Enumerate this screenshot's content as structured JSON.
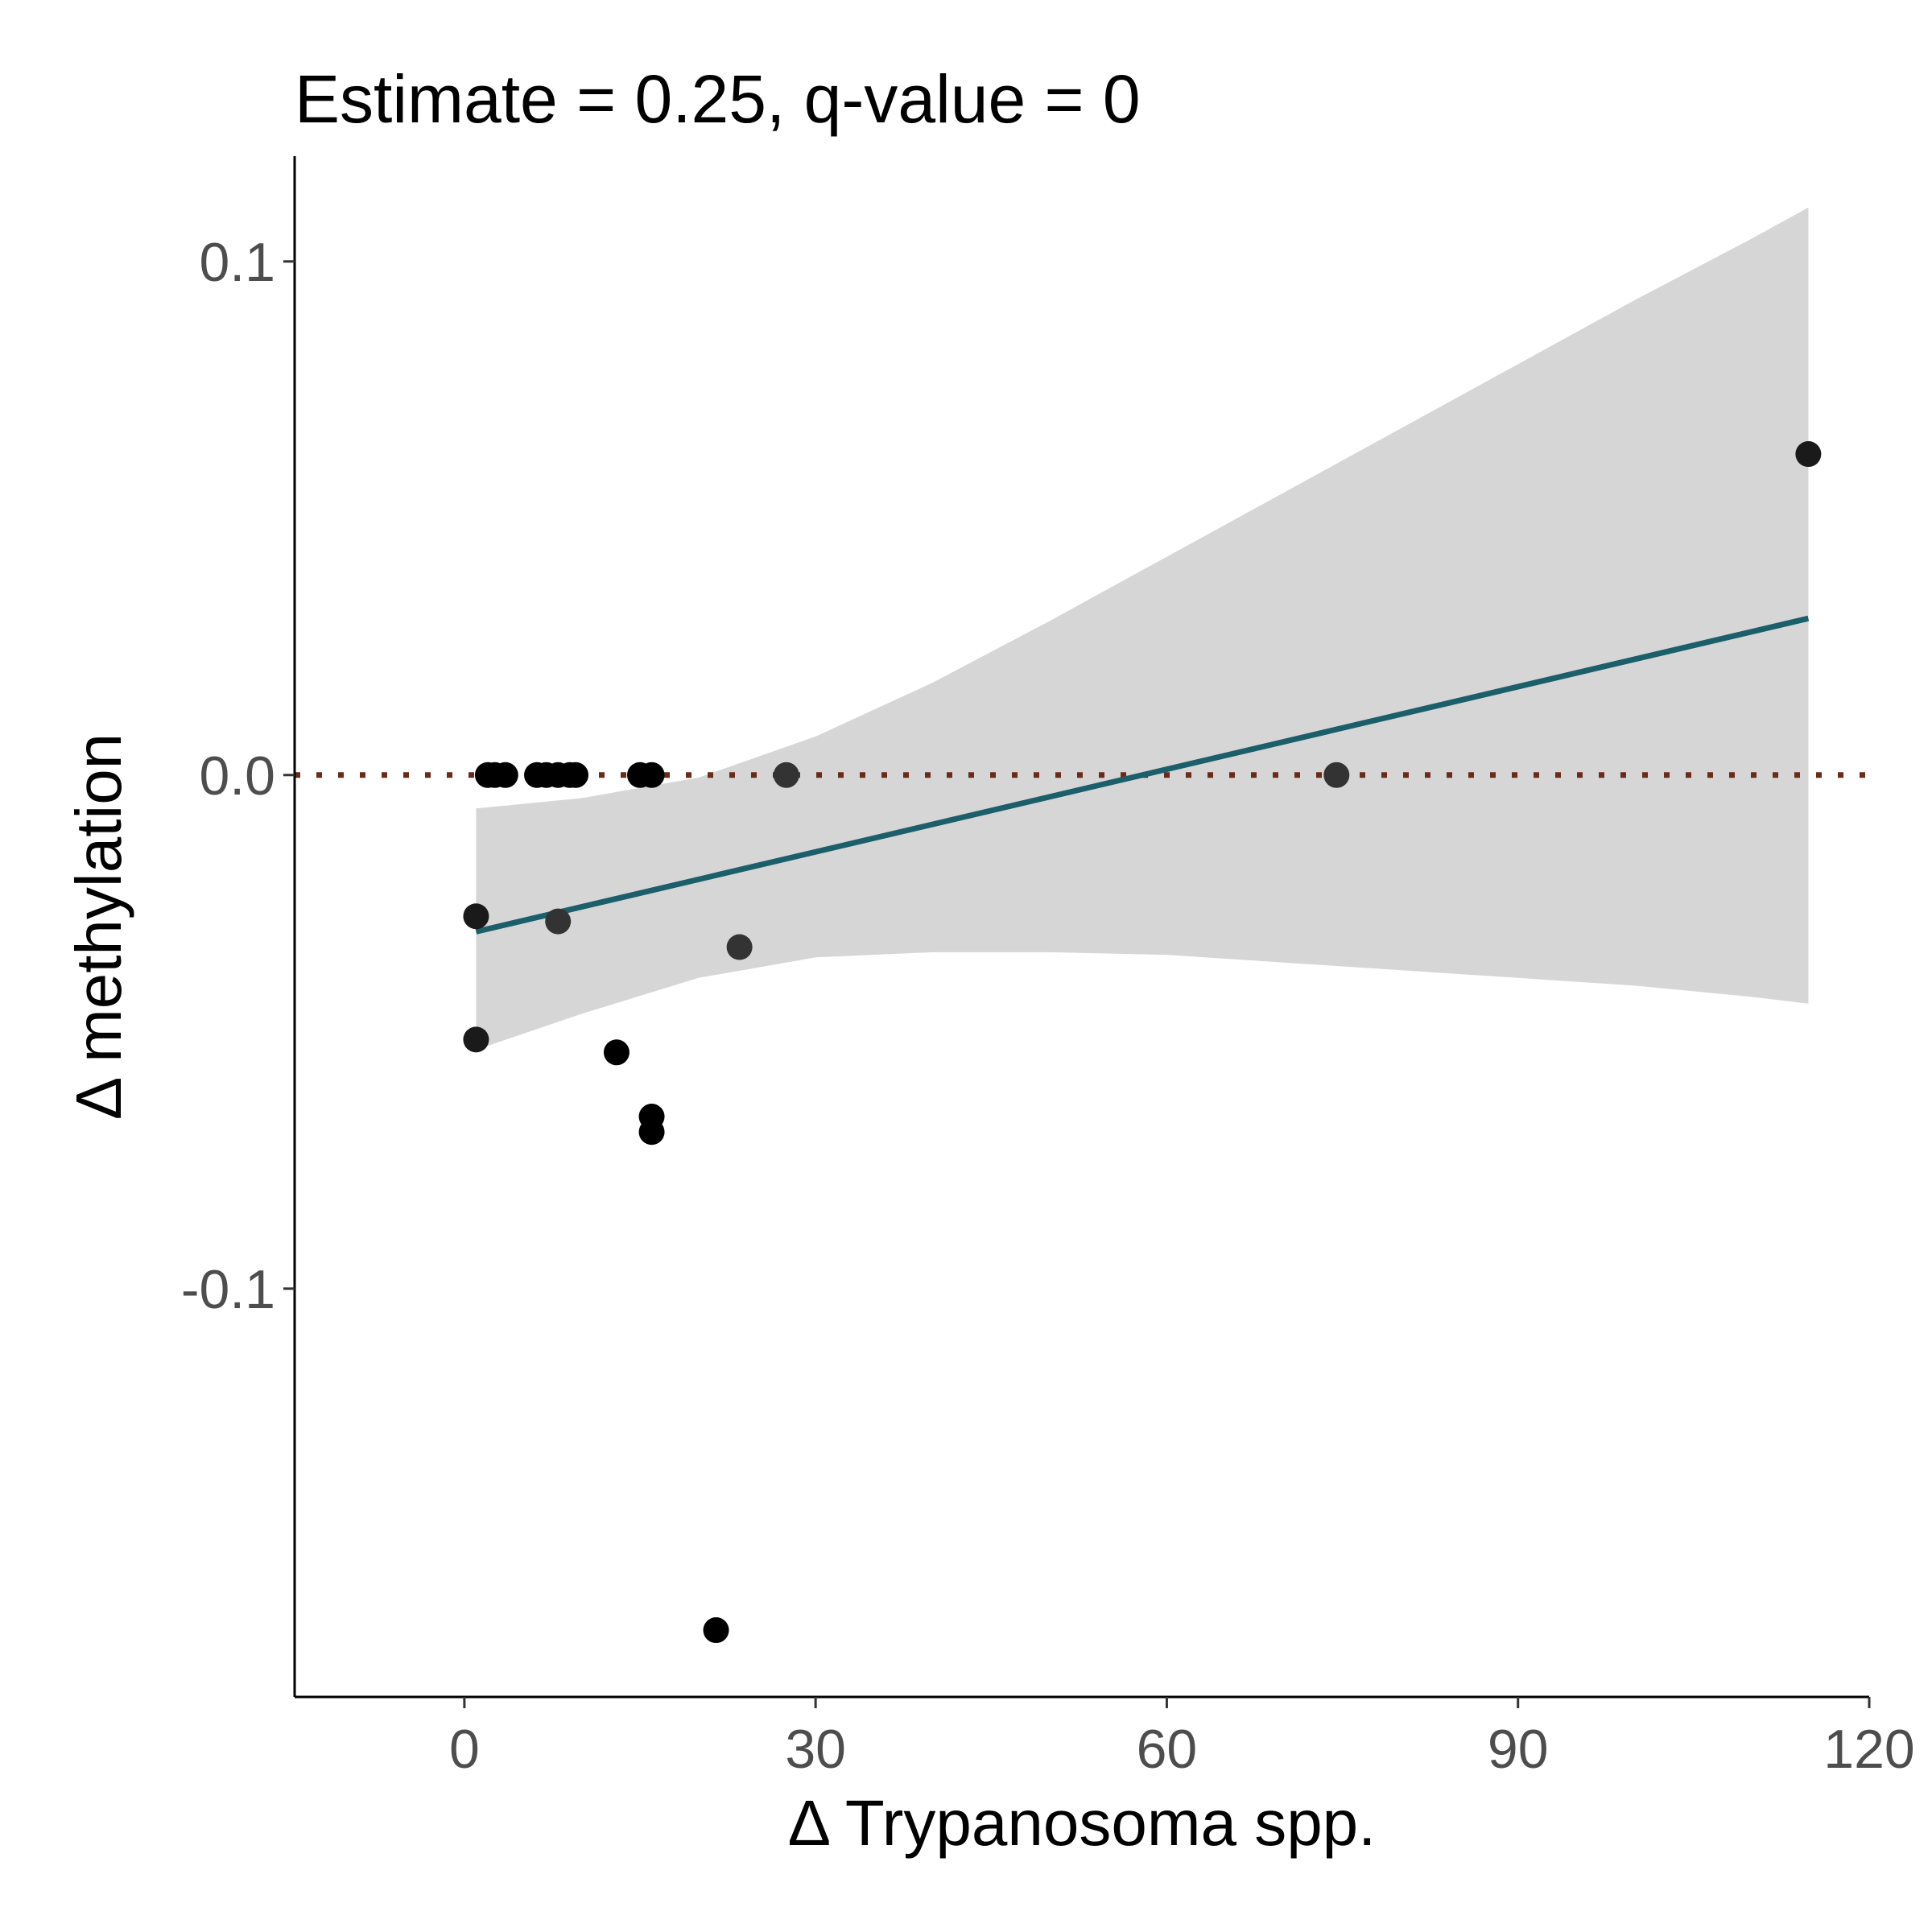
{
  "chart_data": {
    "type": "scatter",
    "title": "Estimate = 0.25, q-value = 0",
    "xlabel": "Δ Trypanosoma spp.",
    "ylabel": "Δ methylation",
    "xlim": [
      -14.5,
      120
    ],
    "ylim": [
      -0.1795,
      0.1205
    ],
    "x_ticks": [
      {
        "value": 0,
        "label": "0"
      },
      {
        "value": 30,
        "label": "30"
      },
      {
        "value": 60,
        "label": "60"
      },
      {
        "value": 90,
        "label": "90"
      },
      {
        "value": 120,
        "label": "120"
      }
    ],
    "y_ticks": [
      {
        "value": 0.1,
        "label": "0.1"
      },
      {
        "value": 0.0,
        "label": "0.0"
      },
      {
        "value": -0.1,
        "label": "-0.1"
      }
    ],
    "reference_line": {
      "y": 0,
      "style": "dotted",
      "color": "#6b2a1a"
    },
    "fit_line": {
      "x": [
        1,
        114.8
      ],
      "y": [
        -0.0305,
        0.0305
      ],
      "color": "#1a5f6a"
    },
    "confidence_band": {
      "x": [
        1,
        10,
        20,
        30,
        40,
        50,
        60,
        70,
        80,
        90,
        100,
        110,
        114.8
      ],
      "upper": [
        -0.0065,
        -0.0045,
        -0.0005,
        0.0075,
        0.018,
        0.03,
        0.0425,
        0.055,
        0.0675,
        0.08,
        0.0925,
        0.1045,
        0.1105
      ],
      "lower": [
        -0.0535,
        -0.0465,
        -0.0395,
        -0.0355,
        -0.0345,
        -0.0345,
        -0.035,
        -0.0365,
        -0.038,
        -0.0395,
        -0.041,
        -0.0432,
        -0.0445
      ],
      "color": "#d6d6d6"
    },
    "points": [
      {
        "x": 1.0,
        "y": -0.0275,
        "color": "#1a1a1a"
      },
      {
        "x": 1.0,
        "y": -0.0515,
        "color": "#1a1a1a"
      },
      {
        "x": 2.0,
        "y": 0.0,
        "color": "#000000"
      },
      {
        "x": 2.6,
        "y": 0.0,
        "color": "#000000"
      },
      {
        "x": 3.5,
        "y": 0.0,
        "color": "#000000"
      },
      {
        "x": 6.2,
        "y": 0.0,
        "color": "#000000"
      },
      {
        "x": 7.0,
        "y": 0.0,
        "color": "#000000"
      },
      {
        "x": 8.0,
        "y": 0.0,
        "color": "#000000"
      },
      {
        "x": 8.0,
        "y": -0.0285,
        "color": "#333333"
      },
      {
        "x": 9.0,
        "y": 0.0,
        "color": "#000000"
      },
      {
        "x": 9.5,
        "y": 0.0,
        "color": "#000000"
      },
      {
        "x": 13.0,
        "y": -0.054,
        "color": "#000000"
      },
      {
        "x": 15.0,
        "y": 0.0,
        "color": "#000000"
      },
      {
        "x": 16.0,
        "y": 0.0,
        "color": "#000000"
      },
      {
        "x": 16.0,
        "y": -0.0665,
        "color": "#000000"
      },
      {
        "x": 16.0,
        "y": -0.0695,
        "color": "#000000"
      },
      {
        "x": 21.5,
        "y": -0.1665,
        "color": "#000000"
      },
      {
        "x": 23.5,
        "y": -0.0335,
        "color": "#333333"
      },
      {
        "x": 27.5,
        "y": 0.0,
        "color": "#333333"
      },
      {
        "x": 74.5,
        "y": 0.0,
        "color": "#333333"
      },
      {
        "x": 114.8,
        "y": 0.0625,
        "color": "#1a1a1a"
      }
    ]
  }
}
